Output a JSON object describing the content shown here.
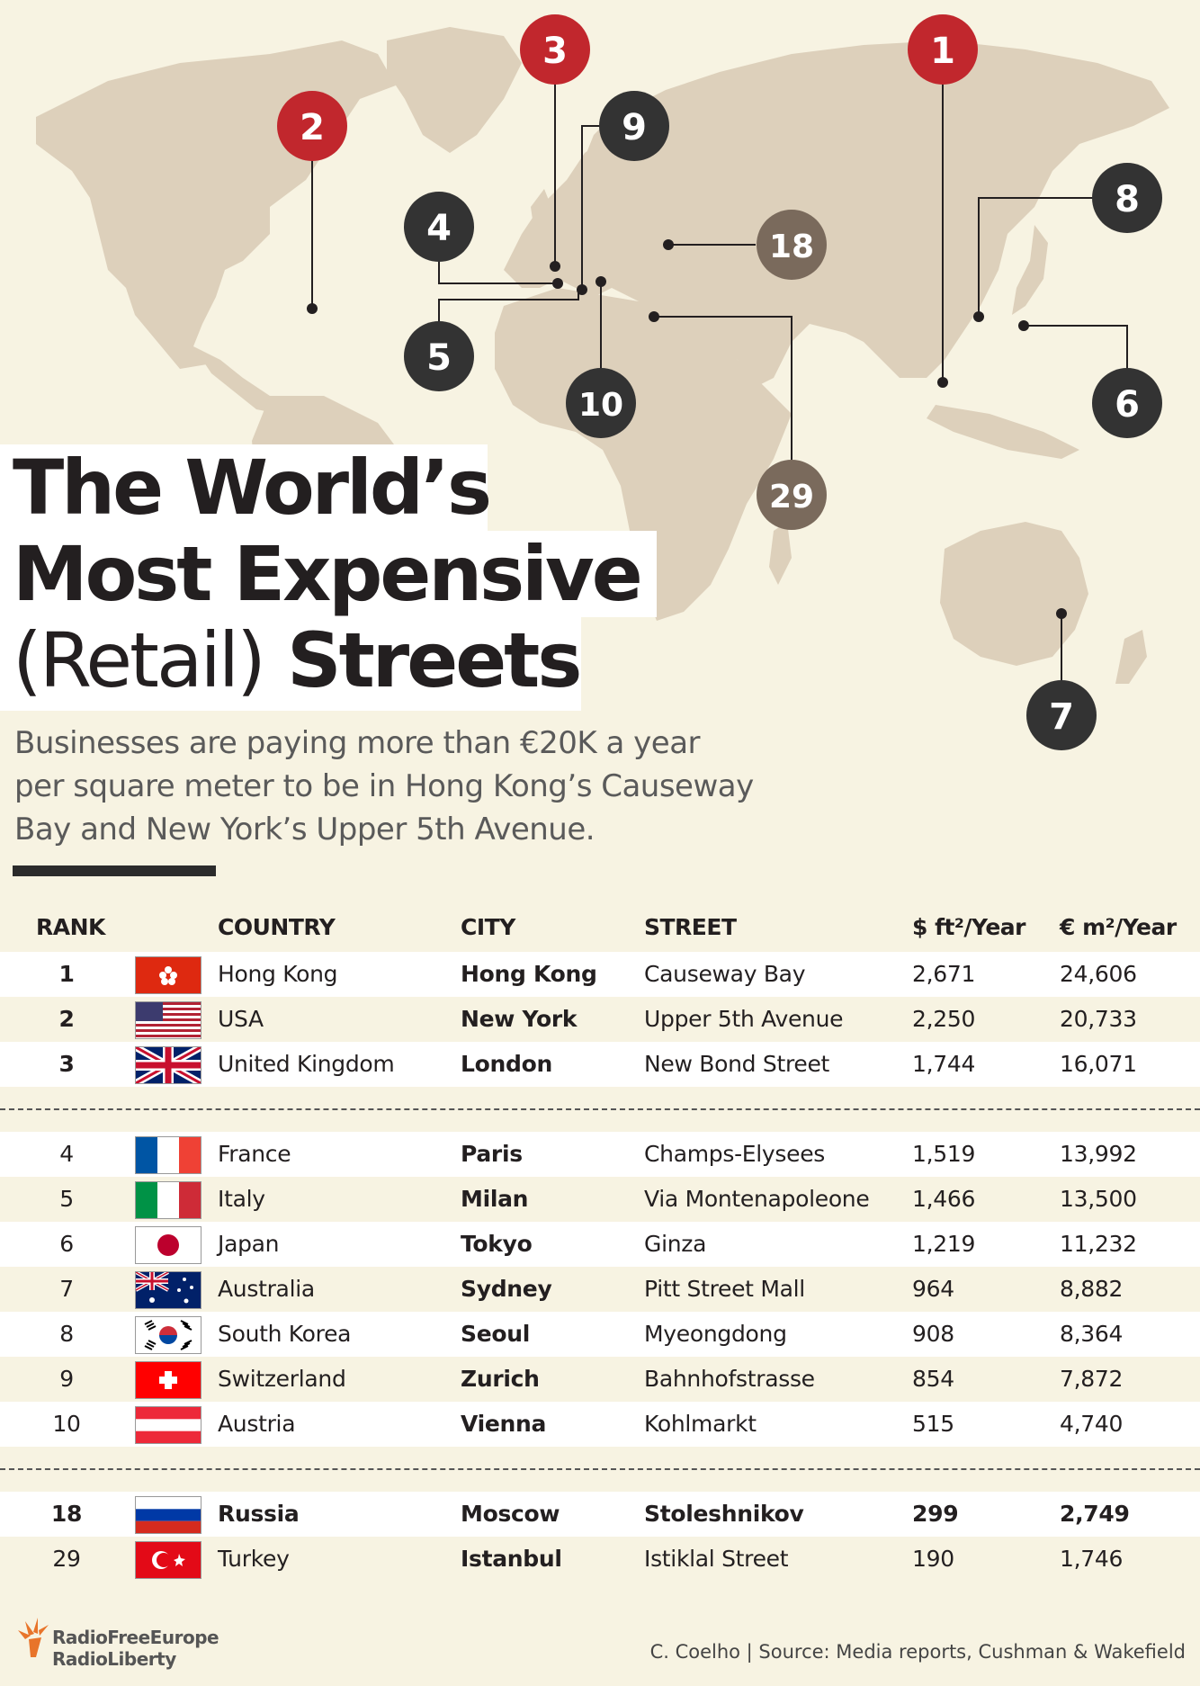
{
  "title": {
    "line1": "The World’s",
    "line2": "Most Expensive",
    "line3_light": "(Retail)",
    "line3_bold": "Streets"
  },
  "subtitle": [
    "Businesses are paying more than €20K a year",
    "per square meter to be in Hong Kong’s Causeway",
    "Bay and New York’s Upper 5th Avenue."
  ],
  "map_markers": [
    "1",
    "2",
    "3",
    "4",
    "5",
    "6",
    "7",
    "8",
    "9",
    "10",
    "18",
    "29"
  ],
  "colors": {
    "background": "#f7f3e2",
    "land": "#ddd0bb",
    "top3_marker": "#c1272d",
    "top10_marker": "#333333",
    "other_marker": "#7a6a5c",
    "text": "#231f20"
  },
  "table": {
    "headers": {
      "rank": "RANK",
      "country": "COUNTRY",
      "city": "CITY",
      "street": "STREET",
      "usd": "$ ft²/Year",
      "eur": "€ m²/Year"
    },
    "rows": [
      {
        "rank": "1",
        "flag": "hong-kong-flag",
        "country": "Hong Kong",
        "city": "Hong Kong",
        "street": "Causeway Bay",
        "usd": "2,671",
        "eur": "24,606"
      },
      {
        "rank": "2",
        "flag": "usa-flag",
        "country": "USA",
        "city": "New York",
        "street": "Upper 5th Avenue",
        "usd": "2,250",
        "eur": "20,733"
      },
      {
        "rank": "3",
        "flag": "uk-flag",
        "country": "United Kingdom",
        "city": "London",
        "street": "New Bond Street",
        "usd": "1,744",
        "eur": "16,071"
      },
      {
        "rank": "4",
        "flag": "france-flag",
        "country": "France",
        "city": "Paris",
        "street": "Champs-Elysees",
        "usd": "1,519",
        "eur": "13,992"
      },
      {
        "rank": "5",
        "flag": "italy-flag",
        "country": "Italy",
        "city": "Milan",
        "street": "Via Montenapoleone",
        "usd": "1,466",
        "eur": "13,500"
      },
      {
        "rank": "6",
        "flag": "japan-flag",
        "country": "Japan",
        "city": "Tokyo",
        "street": "Ginza",
        "usd": "1,219",
        "eur": "11,232"
      },
      {
        "rank": "7",
        "flag": "australia-flag",
        "country": "Australia",
        "city": "Sydney",
        "street": "Pitt Street Mall",
        "usd": "964",
        "eur": "8,882"
      },
      {
        "rank": "8",
        "flag": "south-korea-flag",
        "country": "South Korea",
        "city": "Seoul",
        "street": "Myeongdong",
        "usd": "908",
        "eur": "8,364"
      },
      {
        "rank": "9",
        "flag": "switzerland-flag",
        "country": "Switzerland",
        "city": "Zurich",
        "street": "Bahnhofstrasse",
        "usd": "854",
        "eur": "7,872"
      },
      {
        "rank": "10",
        "flag": "austria-flag",
        "country": "Austria",
        "city": "Vienna",
        "street": "Kohlmarkt",
        "usd": "515",
        "eur": "4,740"
      },
      {
        "rank": "18",
        "flag": "russia-flag",
        "country": "Russia",
        "city": "Moscow",
        "street": "Stoleshnikov",
        "usd": "299",
        "eur": "2,749"
      },
      {
        "rank": "29",
        "flag": "turkey-flag",
        "country": "Turkey",
        "city": "Istanbul",
        "street": "Istiklal Street",
        "usd": "190",
        "eur": "1,746"
      }
    ]
  },
  "footer": {
    "logo_line1": "RadioFreeEurope",
    "logo_line2": "RadioLiberty",
    "credit": "C. Coelho | Source: Media reports, Cushman & Wakefield"
  }
}
